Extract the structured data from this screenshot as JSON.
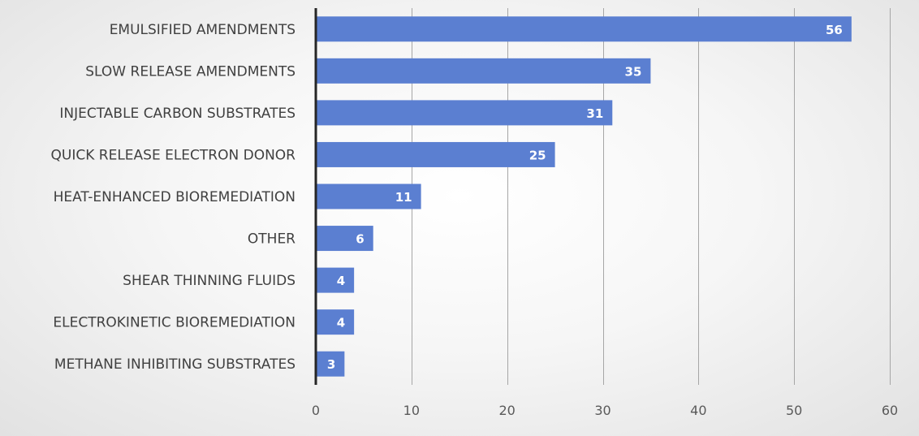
{
  "chart_data": {
    "type": "bar",
    "orientation": "horizontal",
    "categories": [
      "EMULSIFIED AMENDMENTS",
      "SLOW RELEASE AMENDMENTS",
      "INJECTABLE CARBON SUBSTRATES",
      "QUICK RELEASE ELECTRON DONOR",
      "HEAT-ENHANCED BIOREMEDIATION",
      "OTHER",
      "SHEAR THINNING FLUIDS",
      "ELECTROKINETIC BIOREMEDIATION",
      "METHANE INHIBITING SUBSTRATES"
    ],
    "values": [
      56,
      35,
      31,
      25,
      11,
      6,
      4,
      4,
      3
    ],
    "xlim": [
      0,
      60
    ],
    "xticks": [
      0,
      10,
      20,
      30,
      40,
      50,
      60
    ],
    "grid": true,
    "data_labels": true,
    "bar_color": "#5b7fd1",
    "label_color": "#ffffff"
  }
}
